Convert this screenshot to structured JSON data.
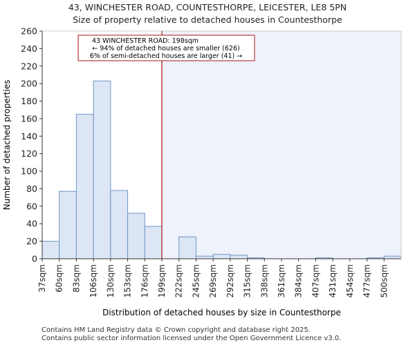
{
  "chart_data": {
    "type": "bar",
    "title": "43, WINCHESTER ROAD, COUNTESTHORPE, LEICESTER, LE8 5PN",
    "subtitle": "Size of property relative to detached houses in Countesthorpe",
    "xlabel": "Distribution of detached houses by size in Countesthorpe",
    "ylabel": "Number of detached properties",
    "ylim": [
      0,
      260
    ],
    "yticks": [
      0,
      20,
      40,
      60,
      80,
      100,
      120,
      140,
      160,
      180,
      200,
      220,
      240,
      260
    ],
    "categories": [
      "37sqm",
      "60sqm",
      "83sqm",
      "106sqm",
      "130sqm",
      "153sqm",
      "176sqm",
      "199sqm",
      "222sqm",
      "245sqm",
      "269sqm",
      "292sqm",
      "315sqm",
      "338sqm",
      "361sqm",
      "384sqm",
      "407sqm",
      "431sqm",
      "454sqm",
      "477sqm",
      "500sqm"
    ],
    "values": [
      20,
      77,
      165,
      203,
      78,
      52,
      37,
      0,
      25,
      3,
      5,
      4,
      1,
      0,
      0,
      0,
      1,
      0,
      0,
      1,
      3
    ],
    "marker": {
      "value": "198sqm",
      "bin_position": 7
    },
    "annotation": {
      "line1": "43 WINCHESTER ROAD: 198sqm",
      "line2": "← 94% of detached houses are smaller (626)",
      "line3": "6% of semi-detached houses are larger (41) →"
    },
    "colors": {
      "bar_fill": "#dce6f4",
      "bar_stroke": "#6e96c8",
      "marker_line": "#aa1111",
      "highlight_region": "#eef2fb",
      "annotation_border": "#aa1111"
    }
  },
  "footer": {
    "line1": "Contains HM Land Registry data © Crown copyright and database right 2025.",
    "line2": "Contains public sector information licensed under the Open Government Licence v3.0."
  }
}
